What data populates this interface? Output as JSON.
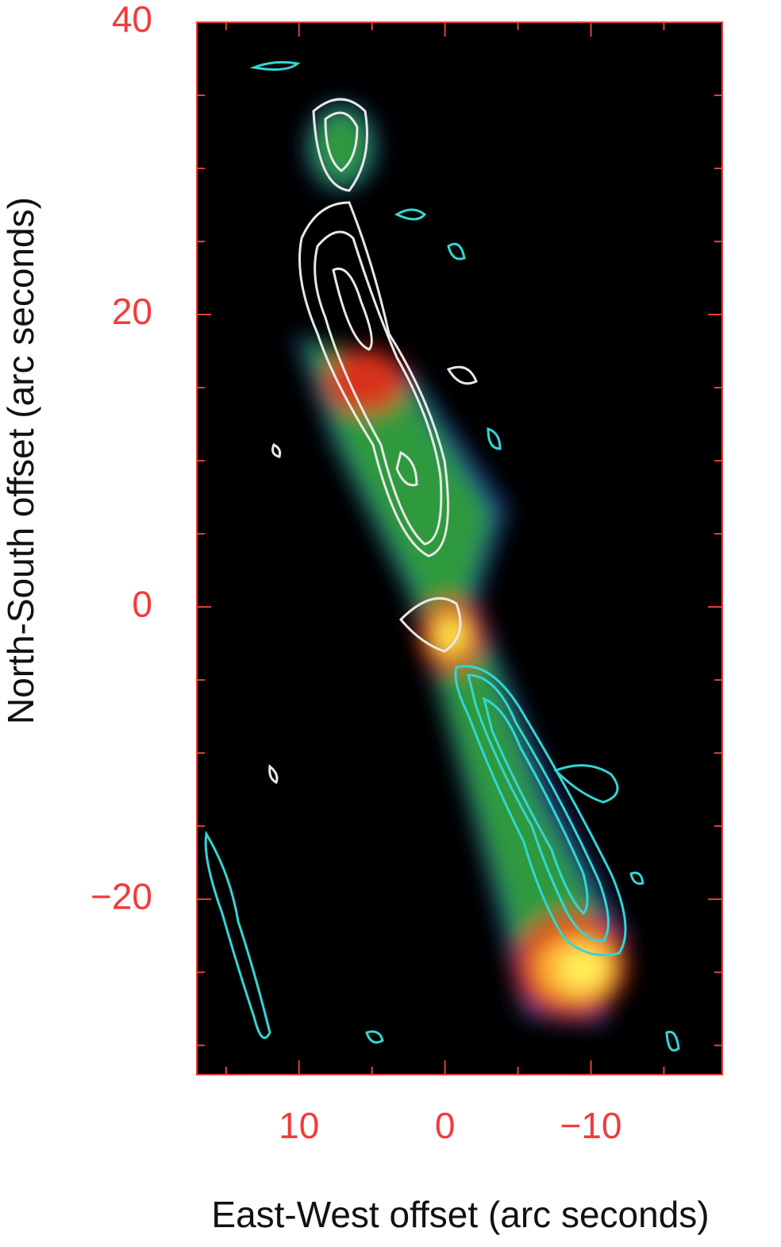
{
  "chart_data": {
    "type": "image",
    "xlabel": "East-West offset (arc seconds)",
    "ylabel": "North-South offset (arc seconds)",
    "xlim": [
      17,
      -19
    ],
    "ylim": [
      -32,
      40
    ],
    "xticks": [
      10,
      0,
      {
        "value": -10,
        "label": "−10"
      }
    ],
    "yticks": [
      {
        "value": -20,
        "label": "−20"
      },
      0,
      20,
      40
    ],
    "xminor": [
      15,
      5,
      -5,
      -15
    ],
    "yminor": [
      -30,
      -25,
      -15,
      -10,
      -5,
      5,
      10,
      15,
      25,
      30,
      35
    ],
    "axis_color": "#e8403a"
  }
}
